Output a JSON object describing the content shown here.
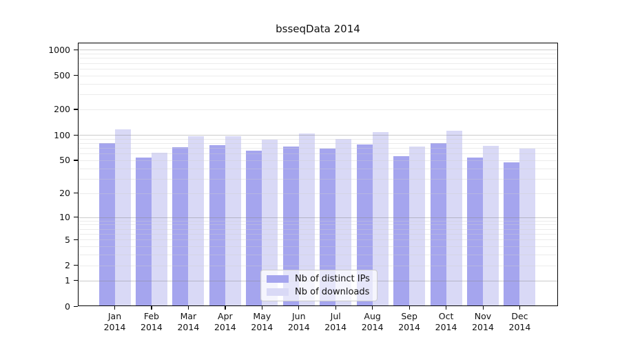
{
  "title": "bsseqData 2014",
  "chart_data": {
    "type": "bar",
    "title": "bsseqData 2014",
    "categories": [
      "Jan",
      "Feb",
      "Mar",
      "Apr",
      "May",
      "Jun",
      "Jul",
      "Aug",
      "Sep",
      "Oct",
      "Nov",
      "Dec"
    ],
    "x_tick_year": "2014",
    "series": [
      {
        "name": "Nb of distinct IPs",
        "color": "#a5a5ee",
        "values": [
          80,
          54,
          71,
          75,
          65,
          73,
          69,
          77,
          56,
          80,
          54,
          47
        ]
      },
      {
        "name": "Nb of downloads",
        "color": "#d9d9f6",
        "values": [
          116,
          62,
          97,
          96,
          88,
          103,
          90,
          108,
          73,
          113,
          74,
          69
        ]
      }
    ],
    "yscale": "log10(1+x)",
    "ylim": [
      0,
      1200
    ],
    "yticks": [
      1000,
      500,
      200,
      100,
      50,
      20,
      10,
      5,
      2,
      1,
      0
    ],
    "major_gridlines": [
      1,
      10,
      100,
      1000
    ],
    "minor_gridlines": [
      2,
      3,
      4,
      5,
      6,
      7,
      8,
      9,
      20,
      30,
      40,
      50,
      60,
      70,
      80,
      90,
      200,
      300,
      400,
      500,
      600,
      700,
      800,
      900
    ],
    "grid": true,
    "legend_position": "bottom-center"
  }
}
